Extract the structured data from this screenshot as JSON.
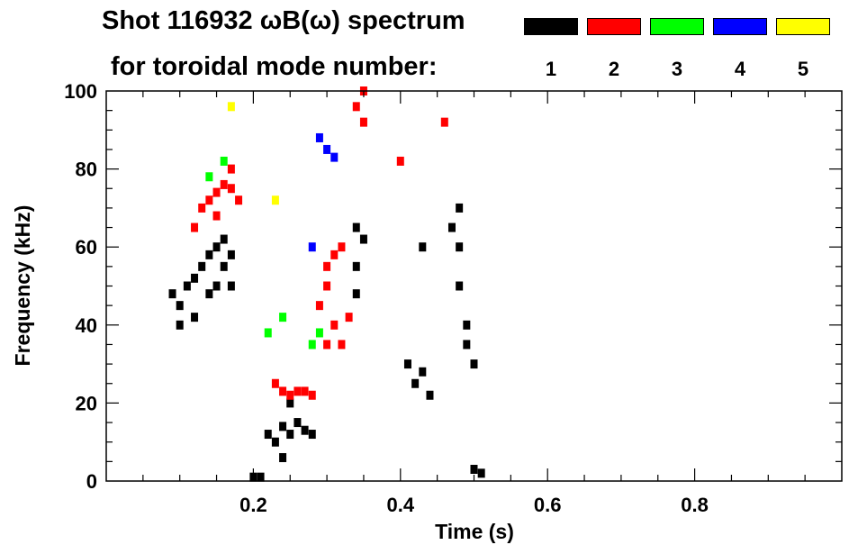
{
  "chart_data": {
    "type": "scatter",
    "title_line1": "Shot 116932 ωB(ω) spectrum",
    "title_line2": "for toroidal mode number:",
    "xlabel": "Time (s)",
    "ylabel": "Frequency (kHz)",
    "xlim": [
      0.0,
      1.0
    ],
    "ylim": [
      0,
      100
    ],
    "xticks": [
      0.2,
      0.4,
      0.6,
      0.8
    ],
    "xtick_labels": [
      "0.2",
      "0.4",
      "0.6",
      "0.8"
    ],
    "yticks": [
      0,
      20,
      40,
      60,
      80,
      100
    ],
    "ytick_labels": [
      "0",
      "20",
      "40",
      "60",
      "80",
      "100"
    ],
    "grid": false,
    "legend_position": "top-right",
    "series": [
      {
        "name": "1",
        "color": "#000000",
        "points": [
          [
            0.09,
            48
          ],
          [
            0.1,
            45
          ],
          [
            0.11,
            50
          ],
          [
            0.12,
            52
          ],
          [
            0.13,
            55
          ],
          [
            0.14,
            58
          ],
          [
            0.15,
            60
          ],
          [
            0.16,
            62
          ],
          [
            0.17,
            58
          ],
          [
            0.1,
            40
          ],
          [
            0.12,
            42
          ],
          [
            0.14,
            48
          ],
          [
            0.15,
            50
          ],
          [
            0.16,
            55
          ],
          [
            0.17,
            50
          ],
          [
            0.22,
            12
          ],
          [
            0.23,
            10
          ],
          [
            0.24,
            14
          ],
          [
            0.25,
            12
          ],
          [
            0.26,
            15
          ],
          [
            0.27,
            13
          ],
          [
            0.28,
            12
          ],
          [
            0.24,
            6
          ],
          [
            0.25,
            20
          ],
          [
            0.2,
            1
          ],
          [
            0.21,
            1
          ],
          [
            0.34,
            65
          ],
          [
            0.34,
            55
          ],
          [
            0.34,
            48
          ],
          [
            0.35,
            62
          ],
          [
            0.41,
            30
          ],
          [
            0.42,
            25
          ],
          [
            0.43,
            28
          ],
          [
            0.44,
            22
          ],
          [
            0.43,
            60
          ],
          [
            0.47,
            65
          ],
          [
            0.48,
            60
          ],
          [
            0.48,
            50
          ],
          [
            0.49,
            40
          ],
          [
            0.49,
            35
          ],
          [
            0.5,
            30
          ],
          [
            0.48,
            70
          ],
          [
            0.5,
            3
          ],
          [
            0.51,
            2
          ]
        ]
      },
      {
        "name": "2",
        "color": "#ff0000",
        "points": [
          [
            0.12,
            65
          ],
          [
            0.13,
            70
          ],
          [
            0.14,
            72
          ],
          [
            0.15,
            74
          ],
          [
            0.16,
            76
          ],
          [
            0.17,
            75
          ],
          [
            0.18,
            72
          ],
          [
            0.15,
            68
          ],
          [
            0.17,
            80
          ],
          [
            0.23,
            25
          ],
          [
            0.24,
            23
          ],
          [
            0.25,
            22
          ],
          [
            0.26,
            23
          ],
          [
            0.27,
            23
          ],
          [
            0.28,
            22
          ],
          [
            0.29,
            45
          ],
          [
            0.3,
            50
          ],
          [
            0.3,
            55
          ],
          [
            0.31,
            58
          ],
          [
            0.31,
            40
          ],
          [
            0.32,
            35
          ],
          [
            0.33,
            42
          ],
          [
            0.32,
            60
          ],
          [
            0.3,
            35
          ],
          [
            0.34,
            96
          ],
          [
            0.35,
            92
          ],
          [
            0.35,
            100
          ],
          [
            0.4,
            82
          ],
          [
            0.46,
            92
          ]
        ]
      },
      {
        "name": "3",
        "color": "#00ff00",
        "points": [
          [
            0.14,
            78
          ],
          [
            0.16,
            82
          ],
          [
            0.22,
            38
          ],
          [
            0.24,
            42
          ],
          [
            0.28,
            35
          ],
          [
            0.29,
            38
          ]
        ]
      },
      {
        "name": "4",
        "color": "#0000ff",
        "points": [
          [
            0.29,
            88
          ],
          [
            0.3,
            85
          ],
          [
            0.31,
            83
          ],
          [
            0.28,
            60
          ]
        ]
      },
      {
        "name": "5",
        "color": "#ffff00",
        "points": [
          [
            0.17,
            96
          ],
          [
            0.23,
            72
          ]
        ]
      }
    ]
  }
}
